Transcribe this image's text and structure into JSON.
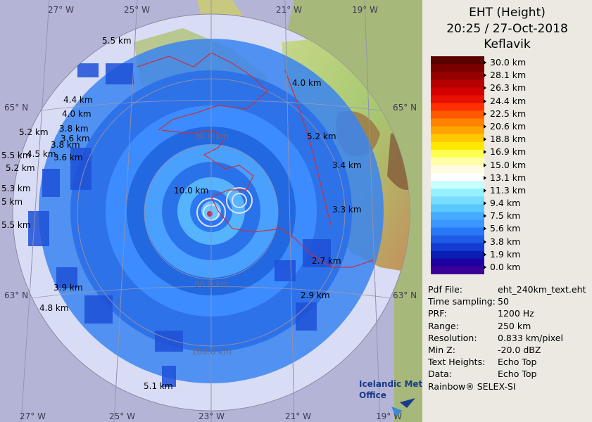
{
  "header": {
    "product": "EHT (Height)",
    "datetime": "20:25 / 27-Oct-2018",
    "station": "Keflavik"
  },
  "color_scale": {
    "labels": [
      "30.0 km",
      "28.1 km",
      "26.3 km",
      "24.4 km",
      "22.5 km",
      "20.6 km",
      "18.8 km",
      "16.9 km",
      "15.0 km",
      "13.1 km",
      "11.3 km",
      "9.4 km",
      "7.5 km",
      "5.6 km",
      "3.8 km",
      "1.9 km",
      "0.0 km"
    ],
    "colors": [
      "#5a0000",
      "#7a0000",
      "#960000",
      "#b40000",
      "#d20000",
      "#e81000",
      "#ff3000",
      "#ff5a00",
      "#ff8200",
      "#ffa500",
      "#ffc800",
      "#ffe600",
      "#ffff50",
      "#ffffa8",
      "#fffbe0",
      "#ffffff",
      "#c8ffff",
      "#96f0ff",
      "#78dcff",
      "#5ac8ff",
      "#46aaff",
      "#3a96ff",
      "#2878f8",
      "#1e5ae6",
      "#143cd2",
      "#0a1eb4",
      "#1e00a0",
      "#3c0096"
    ]
  },
  "info": [
    {
      "key": "Pdf File:",
      "value": "eht_240km_text.eht"
    },
    {
      "key": "Time sampling:",
      "value": "50"
    },
    {
      "key": "PRF:",
      "value": "1200 Hz"
    },
    {
      "key": "Range:",
      "value": "250 km"
    },
    {
      "key": "Resolution:",
      "value": "0.833 km/pixel"
    },
    {
      "key": "Min Z:",
      "value": "-20.0 dBZ"
    },
    {
      "key": "Text Heights:",
      "value": "Echo Top"
    },
    {
      "key": "Data:",
      "value": "Echo Top"
    }
  ],
  "footer": {
    "software": "Rainbow® SELEX-SI",
    "logo_text": "Icelandic Met Office"
  },
  "map": {
    "longitude_labels": [
      "27° W",
      "25° W",
      "23° W",
      "21° W",
      "19° W"
    ],
    "latitude_labels": [
      "65° N",
      "63° N"
    ],
    "range_rings": [
      "10.0 km",
      "30.0 km",
      "80.0 km",
      "160.0 km"
    ],
    "height_labels": [
      "5.5 km",
      "4.4 km",
      "4.0 km",
      "3.8 km",
      "3.6 km",
      "5.2 km",
      "3.8 km",
      "4.5 km",
      "3.6 km",
      "5.5 km",
      "5.2 km",
      "5.3 km",
      "5 km",
      "5.5 km",
      "3.9 km",
      "4.8 km",
      "5.1 km",
      "4.0 km",
      "5.2 km",
      "3.4 km",
      "3.3 km",
      "2.7 km",
      "2.9 km"
    ]
  }
}
